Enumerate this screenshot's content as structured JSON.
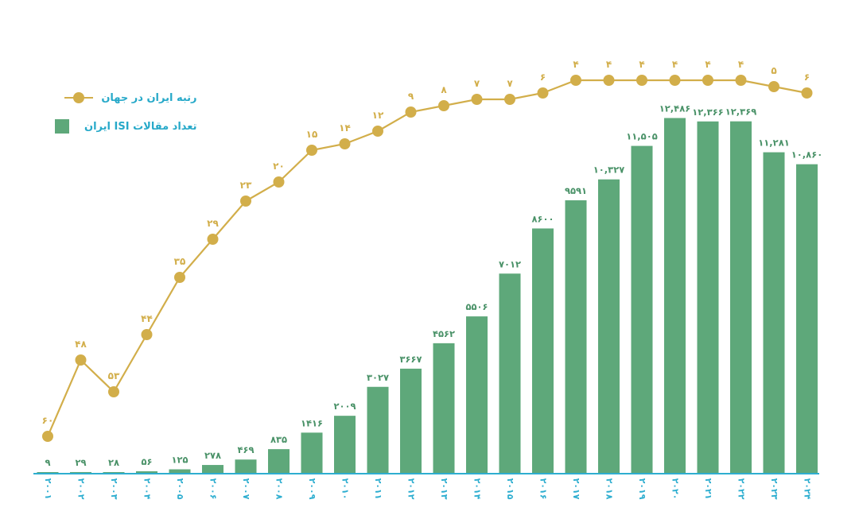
{
  "colors": {
    "bar": "#5ea87a",
    "line": "#d2ae4a",
    "axis": "#2eaed0",
    "bar_label": "#4a9268",
    "legend_text": "#27a9c9"
  },
  "legend": {
    "rank_label": "رتبه ایران در جهان",
    "articles_label": "تعداد مقالات ISI ایران"
  },
  "chart_data": {
    "type": "bar",
    "categories": [
      "۲۰۰۱",
      "۲۰۰۲",
      "۲۰۰۳",
      "۲۰۰۴",
      "۲۰۰۵",
      "۲۰۰۶",
      "۲۰۰۷",
      "۲۰۰۸",
      "۲۰۰۹",
      "۲۰۱۰",
      "۲۰۱۱",
      "۲۰۱۲",
      "۲۰۱۳",
      "۲۰۱۴",
      "۲۰۱۵",
      "۲۰۱۶",
      "۲۰۱۷",
      "۲۰۱۸",
      "۲۰۱۹",
      "۲۰۲۰",
      "۲۰۲۱",
      "۲۰۲۲",
      "۲۰۲۳",
      "۲۰۲۴"
    ],
    "series": [
      {
        "name": "تعداد مقالات ISI ایران",
        "type": "bar",
        "values": [
          9,
          29,
          28,
          56,
          125,
          278,
          469,
          835,
          1416,
          2009,
          3027,
          3667,
          4562,
          5506,
          7012,
          8600,
          9591,
          10327,
          11505,
          12486,
          12366,
          12369,
          11281,
          10860
        ],
        "labels": [
          "۹",
          "۲۹",
          "۲۸",
          "۵۶",
          "۱۲۵",
          "۲۷۸",
          "۴۶۹",
          "۸۳۵",
          "۱۴۱۶",
          "۲۰۰۹",
          "۳۰۲۷",
          "۳۶۶۷",
          "۴۵۶۲",
          "۵۵۰۶",
          "۷۰۱۲",
          "۸۶۰۰",
          "۹۵۹۱",
          "۱۰,۳۲۷",
          "۱۱,۵۰۵",
          "۱۲,۴۸۶",
          "۱۲,۳۶۶",
          "۱۲,۳۶۹",
          "۱۱,۲۸۱",
          "۱۰,۸۶۰"
        ]
      },
      {
        "name": "رتبه ایران در جهان",
        "type": "line",
        "values": [
          60,
          48,
          53,
          44,
          35,
          29,
          23,
          20,
          15,
          14,
          12,
          9,
          8,
          7,
          7,
          6,
          4,
          4,
          4,
          4,
          4,
          4,
          5,
          6
        ],
        "labels": [
          "۶۰",
          "۴۸",
          "۵۳",
          "۴۴",
          "۳۵",
          "۲۹",
          "۲۳",
          "۲۰",
          "۱۵",
          "۱۴",
          "۱۲",
          "۹",
          "۸",
          "۷",
          "۷",
          "۶",
          "۴",
          "۴",
          "۴",
          "۴",
          "۴",
          "۴",
          "۵",
          "۶"
        ]
      }
    ],
    "bar_ylim": [
      0,
      12500
    ],
    "line_axis_inverted": true,
    "grid": false,
    "legend_position": "top-left"
  }
}
